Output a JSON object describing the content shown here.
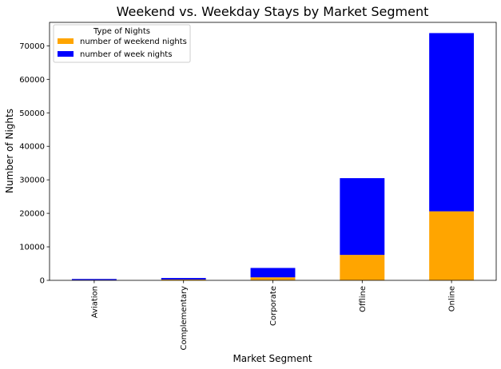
{
  "chart_data": {
    "type": "bar",
    "stacked": true,
    "title": "Weekend vs. Weekday Stays by Market Segment",
    "xlabel": "Market Segment",
    "ylabel": "Number of Nights",
    "categories": [
      "Aviation",
      "Complementary",
      "Corporate",
      "Offline",
      "Online"
    ],
    "ylim": [
      0,
      77000
    ],
    "yticks": [
      0,
      10000,
      20000,
      30000,
      40000,
      50000,
      60000,
      70000
    ],
    "grid": false,
    "legend": {
      "title": "Type of Nights",
      "placement": "top-left"
    },
    "series": [
      {
        "name": "number of weekend nights",
        "color": "#ffa500",
        "values": [
          100,
          250,
          900,
          7600,
          20600
        ]
      },
      {
        "name": "number of week nights",
        "color": "#0000ff",
        "values": [
          300,
          450,
          2800,
          22900,
          53200
        ]
      }
    ]
  }
}
